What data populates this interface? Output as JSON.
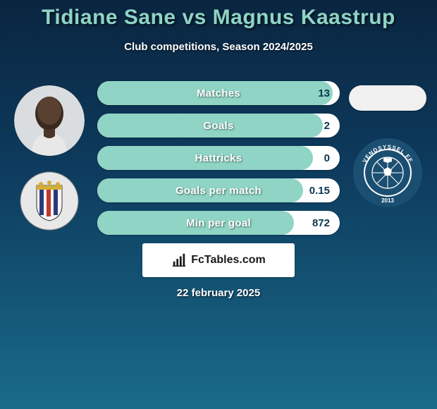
{
  "title": "Tidiane Sane vs Magnus Kaastrup",
  "subtitle": "Club competitions, Season 2024/2025",
  "date": "22 february 2025",
  "logo_text": "FcTables.com",
  "colors": {
    "accent": "#8fd4c4",
    "pill_bg": "#ffffff",
    "value_text": "#0a3550"
  },
  "stats": [
    {
      "label": "Matches",
      "value_right": "13",
      "fill_pct": 97
    },
    {
      "label": "Goals",
      "value_right": "2",
      "fill_pct": 93
    },
    {
      "label": "Hattricks",
      "value_right": "0",
      "fill_pct": 89
    },
    {
      "label": "Goals per match",
      "value_right": "0.15",
      "fill_pct": 85
    },
    {
      "label": "Min per goal",
      "value_right": "872",
      "fill_pct": 81
    }
  ],
  "left_badge": {
    "bg": "#e8e8e8",
    "stripes": [
      "#2a3a7a",
      "#c0392b"
    ],
    "accent": "#d4af37"
  },
  "right_badge": {
    "ring": "#1b4f72",
    "inner_bg": "#ffffff",
    "ball": "#1b4f72",
    "text": "VENDSYSSEL FF",
    "year": "2013"
  }
}
